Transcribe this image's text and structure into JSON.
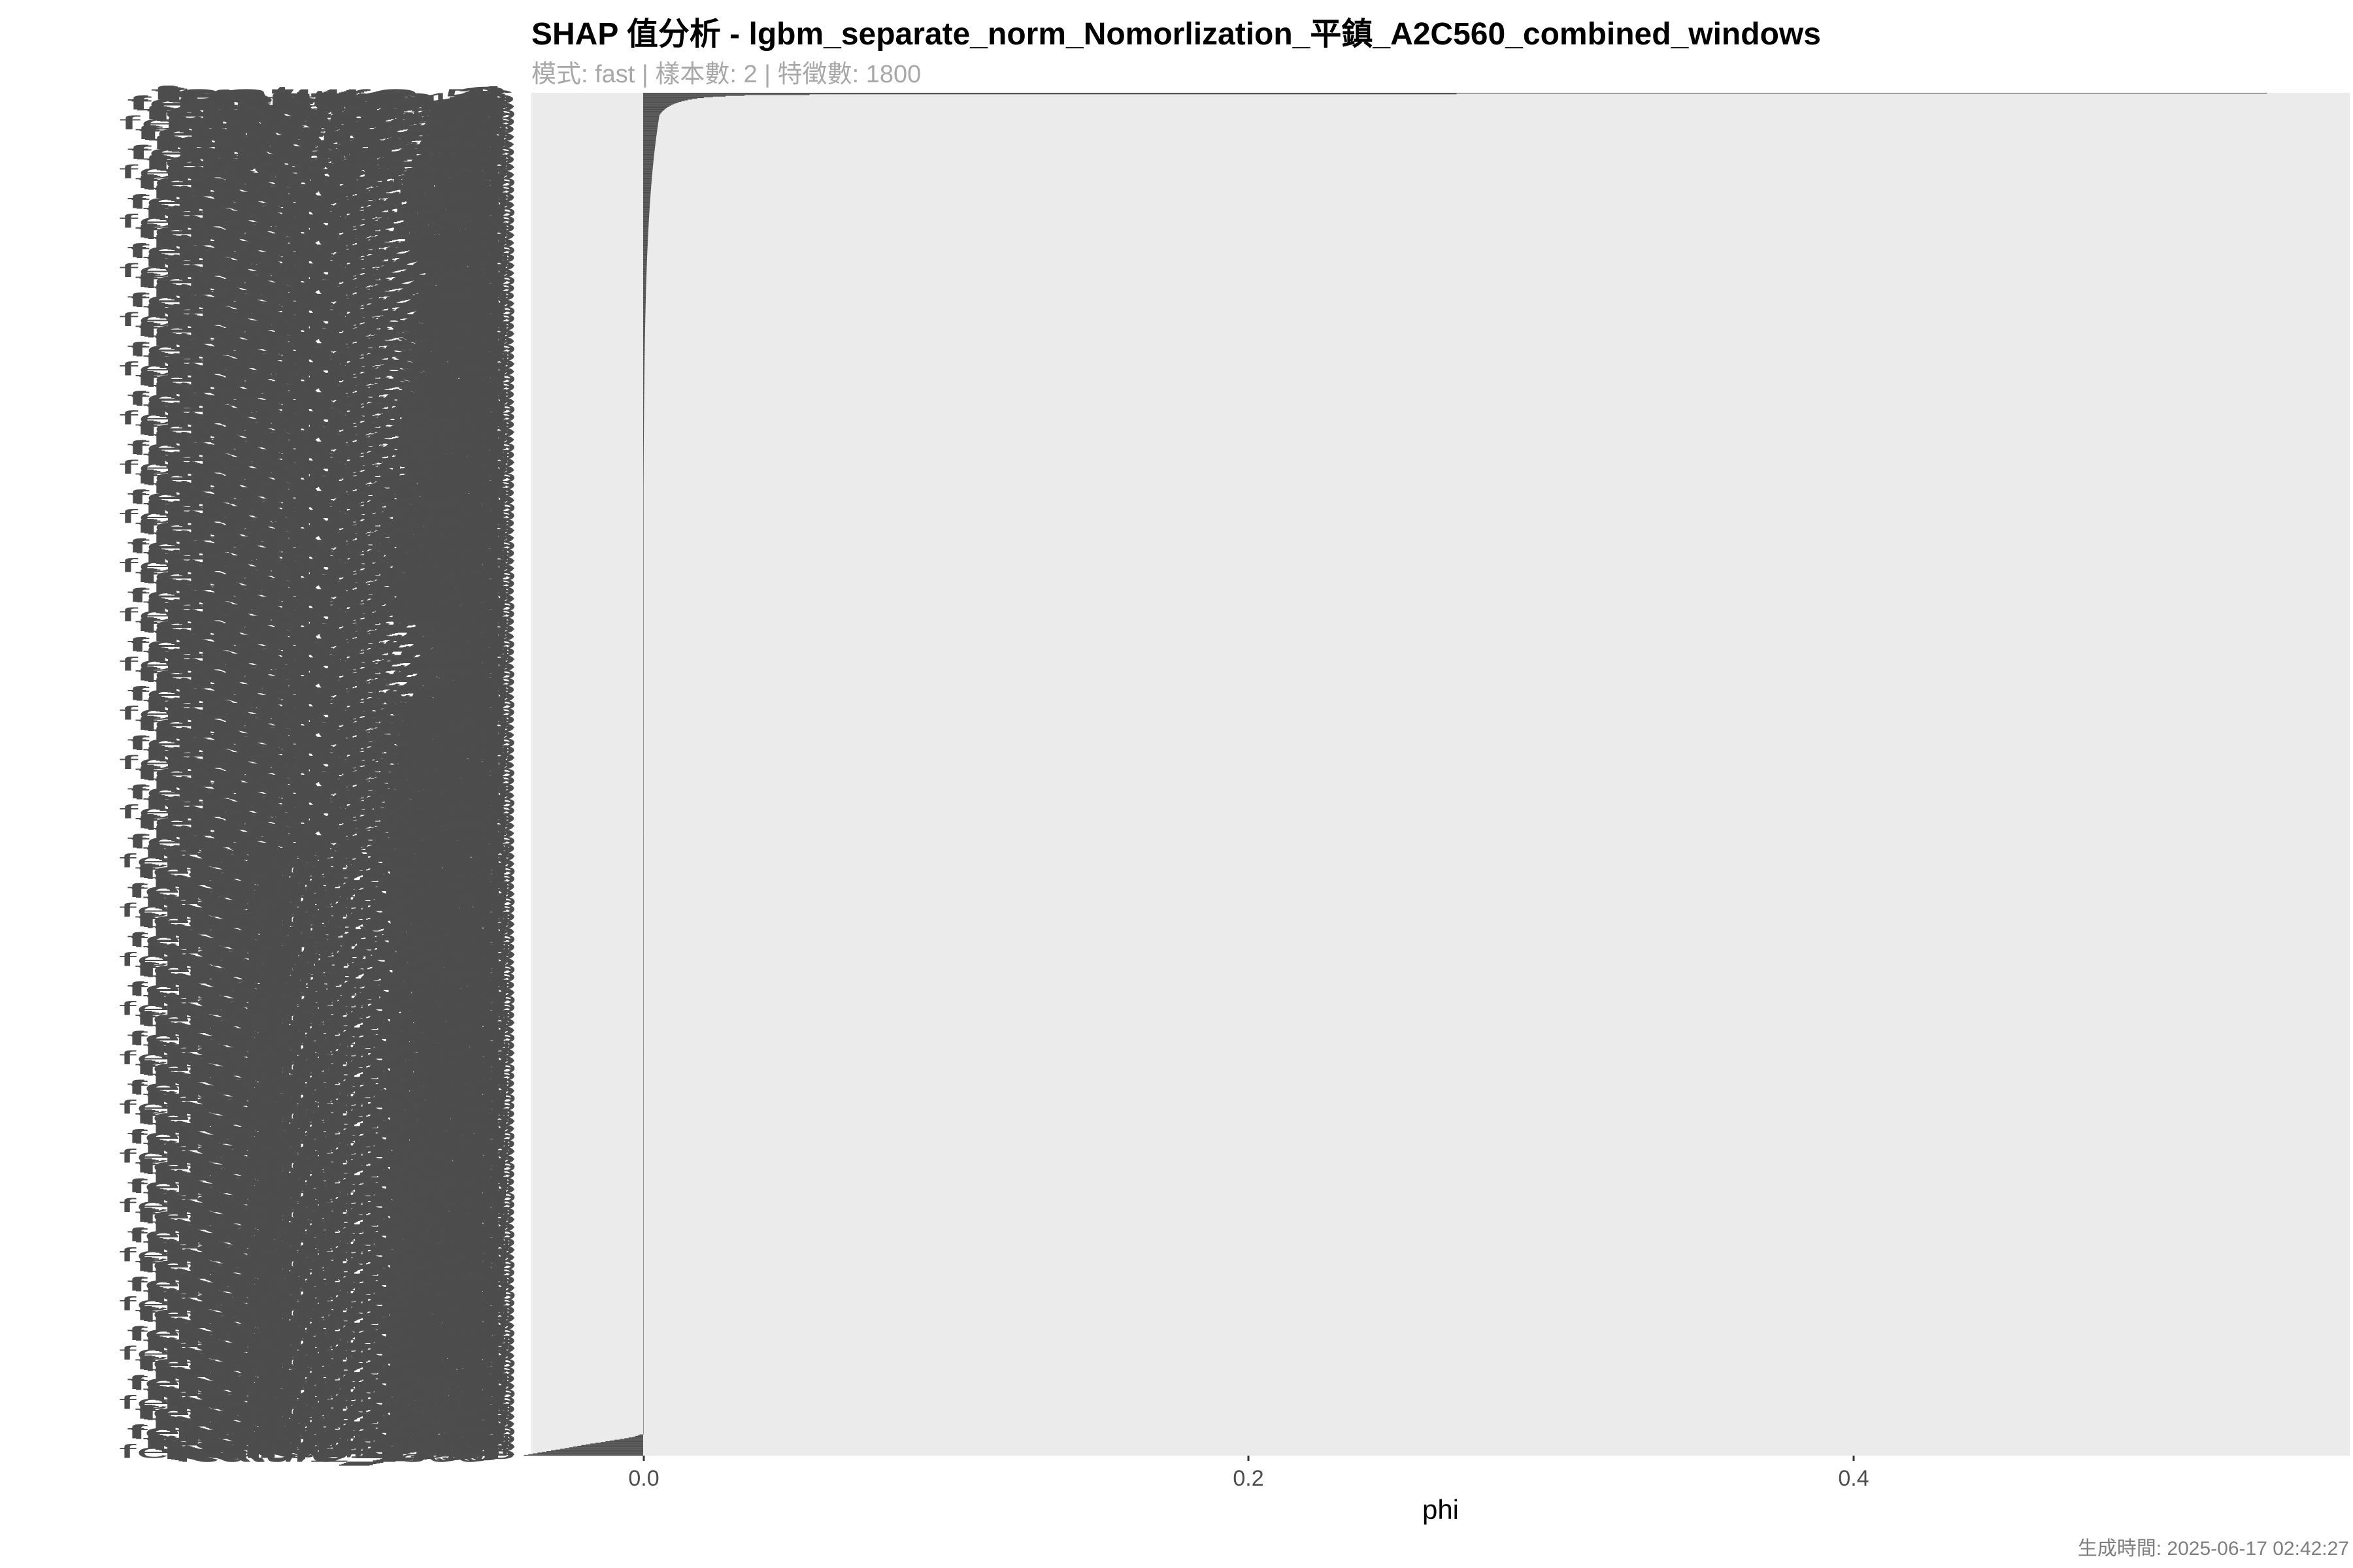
{
  "chart_data": {
    "type": "bar",
    "orientation": "horizontal",
    "title": "SHAP 值分析 - lgbm_separate_norm_Nomorlization_平鎮_A2C560_combined_windows",
    "subtitle": "模式: fast | 樣本數: 2 | 特徵數: 1800",
    "caption": "生成時間: 2025-06-17 02:42:27",
    "xlabel": "phi",
    "ylabel": "",
    "x_ticks": [
      0.0,
      0.2,
      0.4
    ],
    "x_tick_labels": [
      "0.0",
      "0.2",
      "0.4"
    ],
    "xlim": [
      -0.037,
      0.565
    ],
    "feature_count": 1800,
    "grid": false,
    "legend": "none",
    "colors": {
      "panel_background": "#ebebeb",
      "bar": "#4d4d4d",
      "axis_text": "#4d4d4d",
      "title": "#000000",
      "subtitle": "#a8a8a8",
      "caption": "#7f7f7f"
    },
    "top_values": [
      0.5376,
      0.2693,
      0.0551,
      0.0336,
      0.0273,
      0.0231,
      0.0201,
      0.0179,
      0.0162,
      0.0148,
      0.0137,
      0.0127,
      0.0118,
      0.0111,
      0.0104,
      0.0098,
      0.0093,
      0.0088,
      0.0084,
      0.008,
      0.0076,
      0.0073,
      0.007,
      0.0067,
      0.0064,
      0.0062,
      0.006,
      0.0058,
      0.0056,
      0.0054
    ],
    "tail_decay": 0.9925,
    "bottom_negative_values": [
      -0.0012,
      -0.0018,
      -0.0026,
      -0.0035,
      -0.0048,
      -0.0062,
      -0.0078,
      -0.0095,
      -0.011,
      -0.0125,
      -0.014,
      -0.0158,
      -0.0175,
      -0.019,
      -0.0205,
      -0.0218,
      -0.0232,
      -0.0245,
      -0.026,
      -0.0275,
      -0.029,
      -0.0305,
      -0.032,
      -0.0335,
      -0.035,
      -0.0365,
      -0.038,
      -0.0395
    ]
  }
}
